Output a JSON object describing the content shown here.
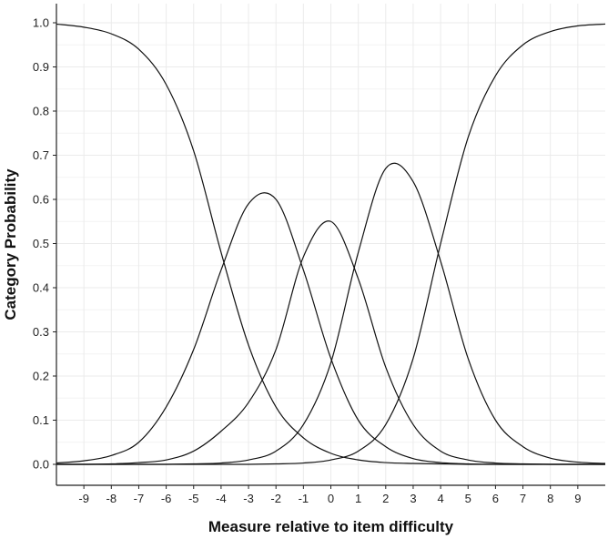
{
  "chart_data": {
    "type": "line",
    "title": "",
    "xlabel": "Measure relative to item difficulty",
    "ylabel": "Category Probability",
    "xlim": [
      -10,
      10
    ],
    "ylim": [
      0,
      1.0
    ],
    "xticks": [
      -9,
      -8,
      -7,
      -6,
      -5,
      -4,
      -3,
      -2,
      -1,
      0,
      1,
      2,
      3,
      4,
      5,
      6,
      7,
      8,
      9
    ],
    "yticks": [
      0.0,
      0.1,
      0.2,
      0.3,
      0.4,
      0.5,
      0.6,
      0.7,
      0.8,
      0.9,
      1.0
    ],
    "ytick_labels": [
      "0.0",
      "0.1",
      "0.2",
      "0.3",
      "0.4",
      "0.5",
      "0.6",
      "0.7",
      "0.8",
      "0.9",
      "1.0"
    ],
    "grid": true,
    "legend": "none",
    "line_color": "#111111",
    "series": [
      {
        "x": [
          -10,
          -9,
          -8,
          -7,
          -6,
          -5,
          -4,
          -3,
          -2,
          -1,
          0,
          1,
          2,
          3,
          4,
          5,
          6,
          7,
          8,
          9,
          10
        ],
        "values": [
          0.997,
          0.99,
          0.975,
          0.94,
          0.86,
          0.71,
          0.48,
          0.27,
          0.13,
          0.06,
          0.025,
          0.01,
          0.004,
          0.002,
          0.001,
          0.0,
          0.0,
          0.0,
          0.0,
          0.0,
          0.0
        ]
      },
      {
        "x": [
          -10,
          -9,
          -8,
          -7,
          -6,
          -5,
          -4,
          -3,
          -2,
          -1,
          0,
          1,
          2,
          3,
          4,
          5,
          6,
          7,
          8,
          9,
          10
        ],
        "values": [
          0.003,
          0.008,
          0.02,
          0.05,
          0.13,
          0.26,
          0.44,
          0.59,
          0.6,
          0.44,
          0.24,
          0.1,
          0.04,
          0.013,
          0.004,
          0.001,
          0.0,
          0.0,
          0.0,
          0.0,
          0.0
        ]
      },
      {
        "x": [
          -10,
          -9,
          -8,
          -7,
          -6,
          -5,
          -4,
          -3,
          -2,
          -1,
          0,
          1,
          2,
          3,
          4,
          5,
          6,
          7,
          8,
          9,
          10
        ],
        "values": [
          0.0,
          0.0,
          0.001,
          0.004,
          0.01,
          0.03,
          0.075,
          0.14,
          0.26,
          0.47,
          0.55,
          0.42,
          0.22,
          0.09,
          0.03,
          0.01,
          0.003,
          0.001,
          0.0,
          0.0,
          0.0
        ]
      },
      {
        "x": [
          -10,
          -9,
          -8,
          -7,
          -6,
          -5,
          -4,
          -3,
          -2,
          -1,
          0,
          1,
          2,
          3,
          4,
          5,
          6,
          7,
          8,
          9,
          10
        ],
        "values": [
          0.0,
          0.0,
          0.0,
          0.0,
          0.0,
          0.001,
          0.003,
          0.01,
          0.03,
          0.09,
          0.23,
          0.48,
          0.67,
          0.64,
          0.46,
          0.24,
          0.1,
          0.04,
          0.014,
          0.005,
          0.002
        ]
      },
      {
        "x": [
          -10,
          -9,
          -8,
          -7,
          -6,
          -5,
          -4,
          -3,
          -2,
          -1,
          0,
          1,
          2,
          3,
          4,
          5,
          6,
          7,
          8,
          9,
          10
        ],
        "values": [
          0.0,
          0.0,
          0.0,
          0.0,
          0.0,
          0.0,
          0.0,
          0.0,
          0.001,
          0.003,
          0.01,
          0.03,
          0.09,
          0.24,
          0.5,
          0.74,
          0.88,
          0.95,
          0.98,
          0.993,
          0.997
        ]
      }
    ]
  }
}
